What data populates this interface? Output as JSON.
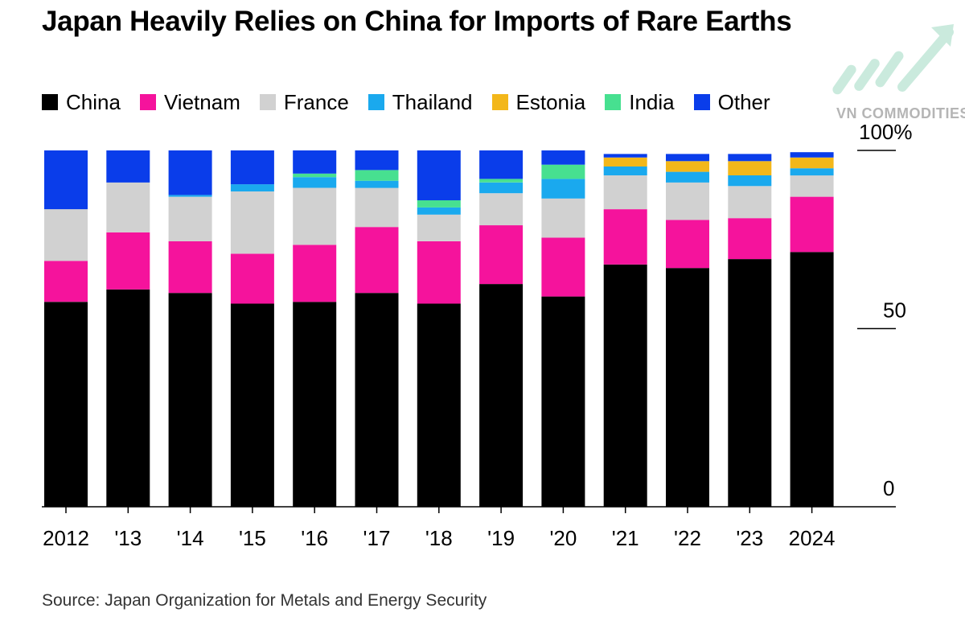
{
  "title": "Japan Heavily Relies on China for Imports of Rare Earths",
  "source": "Source: Japan Organization for Metals and Energy Security",
  "watermark": {
    "text": "VN COMMODITIES",
    "icon": "rising-arrow-logo"
  },
  "colors": {
    "China": "#000000",
    "Vietnam": "#f5139c",
    "France": "#d1d1d1",
    "Thailand": "#1aa9ee",
    "Estonia": "#f3b71a",
    "India": "#47e090",
    "Other": "#0a3dea"
  },
  "chart_data": {
    "type": "bar",
    "stacked": true,
    "categories": [
      "2012",
      "'13",
      "'14",
      "'15",
      "'16",
      "'17",
      "'18",
      "'19",
      "'20",
      "'21",
      "'22",
      "'23",
      "2024"
    ],
    "y_ticks": [
      {
        "value": 0,
        "label": "0"
      },
      {
        "value": 50,
        "label": "50"
      },
      {
        "value": 100,
        "label": "100%"
      }
    ],
    "ylim": [
      0,
      100
    ],
    "y_axis_side": "right",
    "legend_position": "top",
    "grid": false,
    "series": [
      {
        "name": "China",
        "values": [
          57.5,
          61,
          60,
          57,
          57.5,
          60,
          57,
          62.5,
          59,
          68,
          67,
          69.5,
          71.5
        ]
      },
      {
        "name": "Vietnam",
        "values": [
          11.5,
          16,
          14.5,
          14,
          16,
          18.5,
          17.5,
          16.5,
          16.5,
          15.5,
          13.5,
          11.5,
          15.5
        ]
      },
      {
        "name": "France",
        "values": [
          14.5,
          14,
          12.5,
          17.5,
          16,
          11,
          7.5,
          9,
          11,
          9.5,
          10.5,
          9,
          6
        ]
      },
      {
        "name": "Thailand",
        "values": [
          0,
          0,
          0.5,
          2,
          3,
          2,
          2,
          3,
          5.5,
          2.5,
          3,
          3,
          2
        ]
      },
      {
        "name": "Estonia",
        "values": [
          0,
          0,
          0,
          0,
          0,
          0,
          0,
          0,
          0,
          2.5,
          3,
          4,
          3
        ]
      },
      {
        "name": "India",
        "values": [
          0,
          0,
          0,
          0,
          1,
          3,
          2,
          1,
          4,
          0,
          0,
          0,
          0
        ]
      },
      {
        "name": "Other",
        "values": [
          16.5,
          9,
          12.5,
          9.5,
          6.5,
          5.5,
          14,
          8,
          4,
          1,
          2,
          2,
          1.5
        ]
      }
    ]
  }
}
